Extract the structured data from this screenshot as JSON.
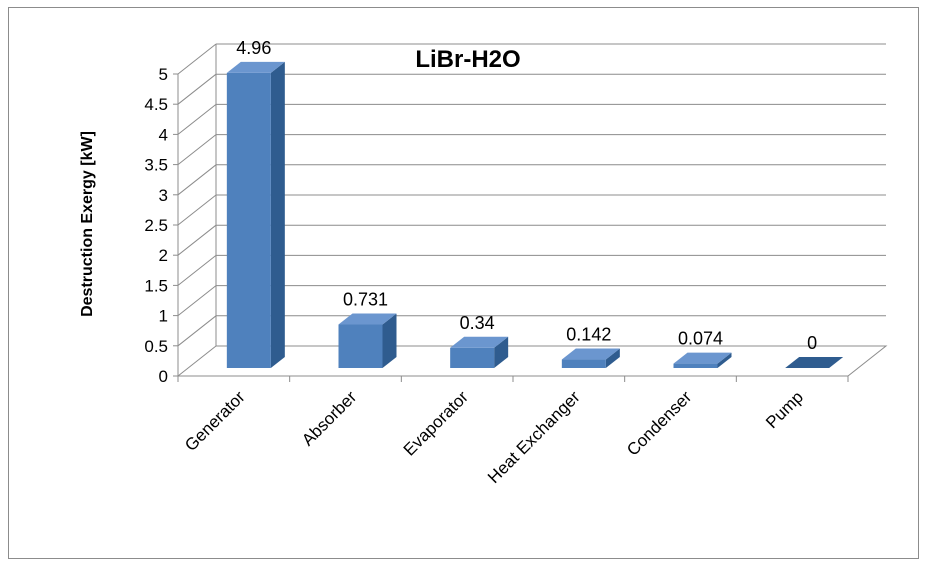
{
  "chart_data": {
    "type": "bar",
    "title": "LiBr-H2O",
    "xlabel": "",
    "ylabel": "Destruction Exergy [kW]",
    "categories": [
      "Generator",
      "Absorber",
      "Evaporator",
      "Heat Exchanger",
      "Condenser",
      "Pump"
    ],
    "values": [
      4.96,
      0.731,
      0.34,
      0.142,
      0.074,
      0
    ],
    "value_labels": [
      "4.96",
      "0.731",
      "0.34",
      "0.142",
      "0.074",
      "0"
    ],
    "ylim": [
      0,
      5
    ],
    "yticks": [
      "0",
      "0.5",
      "1",
      "1.5",
      "2",
      "2.5",
      "3",
      "3.5",
      "4",
      "4.5",
      "5"
    ],
    "grid": true,
    "legend": "none",
    "colors": {
      "bar_front": "#4f81bd",
      "bar_top": "#6b96cf",
      "bar_side": "#2f5c8f",
      "grid": "#8c8c8c"
    }
  }
}
